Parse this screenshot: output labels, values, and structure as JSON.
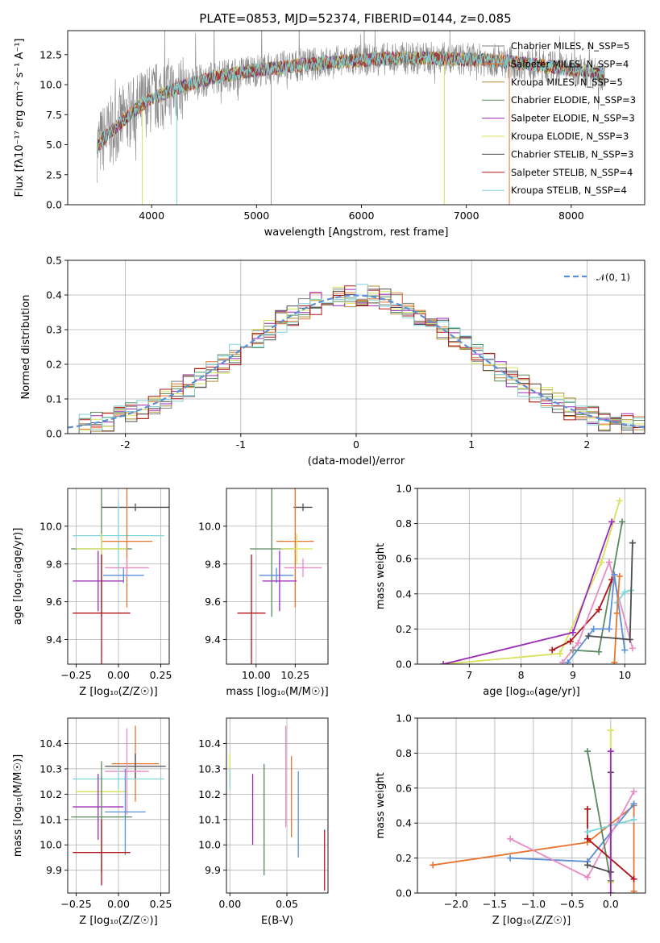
{
  "chart_data": [
    {
      "panel": "spectrum",
      "type": "line",
      "title": "PLATE=0853, MJD=52374, FIBERID=0144, z=0.085",
      "xlabel": "wavelength [Angstrom, rest frame]",
      "ylabel": "Flux [fλ10⁻¹⁷ erg cm⁻² s⁻¹ A⁻¹]",
      "xlim": [
        3200,
        8700
      ],
      "ylim": [
        0,
        14.5
      ],
      "xticks": [
        4000,
        5000,
        6000,
        7000,
        8000
      ],
      "yticks": [
        0.0,
        2.5,
        5.0,
        7.5,
        10.0,
        12.5
      ],
      "grid": false,
      "legend_position": "right",
      "continuum": {
        "x": [
          3450,
          3550,
          3650,
          3800,
          3950,
          4100,
          4300,
          4600,
          4900,
          5200,
          5500,
          5800,
          6100,
          6400,
          6700,
          7000,
          7300,
          7600,
          8000,
          8300
        ],
        "y": [
          4.5,
          5.6,
          6.4,
          7.6,
          8.6,
          9.2,
          9.9,
          10.6,
          11.1,
          11.4,
          11.7,
          11.9,
          12.1,
          12.2,
          12.2,
          12.1,
          12.0,
          11.7,
          11.3,
          10.9
        ]
      },
      "series": [
        {
          "name": "Chabrier MILES, N_SSP=5",
          "color": "#7f7f7f"
        },
        {
          "name": "Salpeter MILES, N_SSP=4",
          "color": "#e8742f"
        },
        {
          "name": "Kroupa MILES, N_SSP=5",
          "color": "#b08c32"
        },
        {
          "name": "Chabrier ELODIE, N_SSP=3",
          "color": "#5a8a5f"
        },
        {
          "name": "Salpeter ELODIE, N_SSP=3",
          "color": "#9a2ab8"
        },
        {
          "name": "Kroupa ELODIE, N_SSP=3",
          "color": "#d8e25a"
        },
        {
          "name": "Chabrier STELIB, N_SSP=3",
          "color": "#4d4d4d"
        },
        {
          "name": "Salpeter STELIB, N_SSP=4",
          "color": "#b01418"
        },
        {
          "name": "Kroupa STELIB, N_SSP=4",
          "color": "#7fd4d8"
        }
      ]
    },
    {
      "panel": "residuals",
      "type": "line",
      "xlabel": "(data-model)/error",
      "ylabel": "Normed distribution",
      "xlim": [
        -2.5,
        2.5
      ],
      "ylim": [
        0,
        0.5
      ],
      "xticks": [
        -2,
        -1,
        0,
        1,
        2
      ],
      "yticks": [
        0.0,
        0.1,
        0.2,
        0.3,
        0.4,
        0.5
      ],
      "grid": true,
      "legend": [
        {
          "name": "𝒩(0, 1)",
          "color": "#5b8fd6",
          "style": "dashed"
        }
      ],
      "legend_position": "top-right",
      "bins": {
        "start": -2.5,
        "width": 0.1,
        "count": 50
      },
      "histogram_colors": [
        "#7f7f7f",
        "#e8742f",
        "#b08c32",
        "#5a8a5f",
        "#9a2ab8",
        "#d8e25a",
        "#4d4d4d",
        "#b01418",
        "#7fd4d8"
      ]
    },
    {
      "panel": "age-Z",
      "type": "scatter",
      "xlabel": "Z [log₁₀(Z/Z☉)]",
      "ylabel": "age  [log₁₀(age/yr)]",
      "xlim": [
        -0.3,
        0.3
      ],
      "ylim": [
        9.27,
        10.2
      ],
      "xticks": [
        -0.25,
        0.0,
        0.25
      ],
      "xticklabels": [
        "−0.25",
        "0.00",
        "0.25"
      ],
      "yticks": [
        9.4,
        9.6,
        9.8,
        10.0
      ],
      "yticklabels": [
        "9.4",
        "9.6",
        "9.8",
        "10.0"
      ],
      "points": [
        {
          "color": "#4d4d4d",
          "x": 0.1,
          "xerr": 0.2,
          "y": 10.1,
          "yerr": 0.02
        },
        {
          "color": "#7fd4d8",
          "x": 0.0,
          "xerr": 0.27,
          "y": 9.95,
          "yerr": 0.18
        },
        {
          "color": "#e8742f",
          "x": 0.05,
          "xerr": 0.15,
          "y": 9.92,
          "yerr": 0.35
        },
        {
          "color": "#5a8a5f",
          "x": -0.1,
          "xerr": 0.18,
          "y": 9.88,
          "yerr": 0.36
        },
        {
          "color": "#d8e25a",
          "x": -0.1,
          "xerr": 0.15,
          "y": 9.88,
          "yerr": 0.08
        },
        {
          "color": "#e88ac4",
          "x": 0.05,
          "xerr": 0.13,
          "y": 9.78,
          "yerr": 0.05
        },
        {
          "color": "#5b8fd6",
          "x": 0.03,
          "xerr": 0.12,
          "y": 9.74,
          "yerr": 0.04
        },
        {
          "color": "#9a2ab8",
          "x": -0.12,
          "xerr": 0.15,
          "y": 9.71,
          "yerr": 0.16
        },
        {
          "color": "#b01418",
          "x": -0.1,
          "xerr": 0.17,
          "y": 9.54,
          "yerr": 0.31
        }
      ]
    },
    {
      "panel": "age-mass",
      "type": "scatter",
      "xlabel": "mass [log₁₀(M/M☉)]",
      "xlim": [
        9.81,
        10.46
      ],
      "ylim": [
        9.27,
        10.2
      ],
      "xticks": [
        10.0,
        10.25
      ],
      "xticklabels": [
        "10.00",
        "10.25"
      ],
      "yticks": [
        9.4,
        9.6,
        9.8,
        10.0
      ],
      "yticklabels": [
        "9.4",
        "9.6",
        "9.8",
        "10.0"
      ],
      "points": [
        {
          "color": "#4d4d4d",
          "x": 10.3,
          "xerr": 0.06,
          "y": 10.1,
          "yerr": 0.02
        },
        {
          "color": "#e8742f",
          "x": 10.25,
          "xerr": 0.12,
          "y": 9.92,
          "yerr": 0.35
        },
        {
          "color": "#5a8a5f",
          "x": 10.1,
          "xerr": 0.14,
          "y": 9.88,
          "yerr": 0.36
        },
        {
          "color": "#d8e25a",
          "x": 10.26,
          "xerr": 0.1,
          "y": 9.88,
          "yerr": 0.08
        },
        {
          "color": "#e88ac4",
          "x": 10.3,
          "xerr": 0.12,
          "y": 9.78,
          "yerr": 0.05
        },
        {
          "color": "#5b8fd6",
          "x": 10.13,
          "xerr": 0.11,
          "y": 9.74,
          "yerr": 0.04
        },
        {
          "color": "#9a2ab8",
          "x": 10.15,
          "xerr": 0.11,
          "y": 9.71,
          "yerr": 0.16
        },
        {
          "color": "#b01418",
          "x": 9.97,
          "xerr": 0.09,
          "y": 9.54,
          "yerr": 0.31
        }
      ]
    },
    {
      "panel": "massweight-age",
      "type": "line",
      "xlabel": "age  [log₁₀(age/yr)]",
      "ylabel": "mass weight",
      "xlim": [
        6.0,
        10.4
      ],
      "ylim": [
        0,
        1.0
      ],
      "xticks": [
        7,
        8,
        9,
        10
      ],
      "yticks": [
        0.0,
        0.2,
        0.4,
        0.6,
        0.8,
        1.0
      ],
      "series": [
        {
          "color": "#d8e25a",
          "x": [
            6.5,
            8.75,
            9.55,
            9.9
          ],
          "y": [
            0.0,
            0.06,
            0.58,
            0.93
          ]
        },
        {
          "color": "#5a8a5f",
          "x": [
            9.0,
            9.5,
            9.95
          ],
          "y": [
            0.08,
            0.07,
            0.81
          ]
        },
        {
          "color": "#9a2ab8",
          "x": [
            6.5,
            9.0,
            9.75
          ],
          "y": [
            0.0,
            0.18,
            0.81
          ]
        },
        {
          "color": "#b01418",
          "x": [
            8.6,
            8.95,
            9.5,
            9.75
          ],
          "y": [
            0.08,
            0.13,
            0.31,
            0.48
          ]
        },
        {
          "color": "#e88ac4",
          "x": [
            8.8,
            9.1,
            9.7,
            10.15
          ],
          "y": [
            0.01,
            0.12,
            0.58,
            0.09
          ]
        },
        {
          "color": "#5b8fd6",
          "x": [
            8.9,
            9.4,
            9.7,
            9.8,
            10.0
          ],
          "y": [
            0.01,
            0.2,
            0.2,
            0.51,
            0.08
          ]
        },
        {
          "color": "#7fd4d8",
          "x": [
            9.85,
            10.0,
            10.12
          ],
          "y": [
            0.35,
            0.41,
            0.42
          ]
        },
        {
          "color": "#e8742f",
          "x": [
            9.8,
            9.85,
            9.9
          ],
          "y": [
            0.01,
            0.29,
            0.5
          ]
        },
        {
          "color": "#4d4d4d",
          "x": [
            9.3,
            10.1,
            10.15
          ],
          "y": [
            0.16,
            0.14,
            0.69
          ]
        }
      ]
    },
    {
      "panel": "mass-Z",
      "type": "scatter",
      "xlabel": "Z [log₁₀(Z/Z☉)]",
      "ylabel": "mass [log₁₀(M/M☉)]",
      "xlim": [
        -0.3,
        0.3
      ],
      "ylim": [
        9.81,
        10.5
      ],
      "xticks": [
        -0.25,
        0.0,
        0.25
      ],
      "xticklabels": [
        "−0.25",
        "0.00",
        "0.25"
      ],
      "yticks": [
        9.9,
        10.0,
        10.1,
        10.2,
        10.3,
        10.4
      ],
      "yticklabels": [
        "9.9",
        "10.0",
        "10.1",
        "10.2",
        "10.3",
        "10.4"
      ],
      "points": [
        {
          "color": "#e8742f",
          "x": 0.1,
          "xerr": 0.14,
          "y": 10.32,
          "yerr": 0.15
        },
        {
          "color": "#4d4d4d",
          "x": 0.1,
          "xerr": 0.18,
          "y": 10.31,
          "yerr": 0.05
        },
        {
          "color": "#e88ac4",
          "x": 0.05,
          "xerr": 0.13,
          "y": 10.29,
          "yerr": 0.17
        },
        {
          "color": "#7fd4d8",
          "x": 0.0,
          "xerr": 0.27,
          "y": 10.26,
          "yerr": 0.04
        },
        {
          "color": "#d8e25a",
          "x": -0.1,
          "xerr": 0.15,
          "y": 10.21,
          "yerr": 0.05
        },
        {
          "color": "#9a2ab8",
          "x": -0.12,
          "xerr": 0.15,
          "y": 10.15,
          "yerr": 0.13
        },
        {
          "color": "#5b8fd6",
          "x": 0.04,
          "xerr": 0.12,
          "y": 10.13,
          "yerr": 0.17
        },
        {
          "color": "#5a8a5f",
          "x": -0.1,
          "xerr": 0.18,
          "y": 10.11,
          "yerr": 0.22
        },
        {
          "color": "#b01418",
          "x": -0.1,
          "xerr": 0.17,
          "y": 9.97,
          "yerr": 0.13
        }
      ]
    },
    {
      "panel": "mass-EBV",
      "type": "scatter",
      "xlabel": "E(B-V)",
      "xlim": [
        -0.003,
        0.086
      ],
      "ylim": [
        9.81,
        10.5
      ],
      "xticks": [
        0.0,
        0.05
      ],
      "xticklabels": [
        "0.00",
        "0.05"
      ],
      "yticks": [
        9.9,
        10.0,
        10.1,
        10.2,
        10.3,
        10.4
      ],
      "yticklabels": [
        "9.9",
        "10.0",
        "10.1",
        "10.2",
        "10.3",
        "10.4"
      ],
      "points": [
        {
          "color": "#d8e25a",
          "x": 0.0,
          "xerr": 0.0,
          "y": 10.3,
          "yerr": 0.06
        },
        {
          "color": "#7fd4d8",
          "x": 0.0,
          "xerr": 0.0,
          "y": 10.26,
          "yerr": 0.04
        },
        {
          "color": "#9a2ab8",
          "x": 0.02,
          "xerr": 0.0,
          "y": 10.14,
          "yerr": 0.14
        },
        {
          "color": "#5a8a5f",
          "x": 0.03,
          "xerr": 0.0,
          "y": 10.1,
          "yerr": 0.22
        },
        {
          "color": "#e88ac4",
          "x": 0.049,
          "xerr": 0.0,
          "y": 10.27,
          "yerr": 0.2
        },
        {
          "color": "#e8742f",
          "x": 0.054,
          "xerr": 0.0,
          "y": 10.19,
          "yerr": 0.16
        },
        {
          "color": "#5b8fd6",
          "x": 0.06,
          "xerr": 0.0,
          "y": 10.12,
          "yerr": 0.17
        },
        {
          "color": "#b01418",
          "x": 0.083,
          "xerr": 0.0,
          "y": 9.94,
          "yerr": 0.12
        }
      ]
    },
    {
      "panel": "massweight-Z",
      "type": "line",
      "xlabel": "Z [log₁₀(Z/Z☉)]",
      "ylabel": "mass weight",
      "xlim": [
        -2.5,
        0.45
      ],
      "ylim": [
        0,
        1.0
      ],
      "xticks": [
        -2.0,
        -1.5,
        -1.0,
        -0.5,
        0.0
      ],
      "xticklabels": [
        "−2.0",
        "−1.5",
        "−1.0",
        "−0.5",
        "0.0"
      ],
      "yticks": [
        0.0,
        0.2,
        0.4,
        0.6,
        0.8,
        1.0
      ],
      "series": [
        {
          "color": "#e8742f",
          "x": [
            -2.3,
            -0.3,
            0.3,
            0.3
          ],
          "y": [
            0.16,
            0.29,
            0.5,
            0.01
          ]
        },
        {
          "color": "#5b8fd6",
          "x": [
            -1.3,
            -0.3,
            0.3
          ],
          "y": [
            0.2,
            0.18,
            0.51
          ]
        },
        {
          "color": "#e88ac4",
          "x": [
            -1.3,
            -0.3,
            0.3
          ],
          "y": [
            0.31,
            0.09,
            0.58
          ]
        },
        {
          "color": "#5a8a5f",
          "x": [
            -0.3,
            0.0
          ],
          "y": [
            0.81,
            0.07
          ]
        },
        {
          "color": "#d8e25a",
          "x": [
            0.0,
            0.0
          ],
          "y": [
            0.06,
            0.93
          ]
        },
        {
          "color": "#b01418",
          "x": [
            -0.3,
            -0.3,
            0.3
          ],
          "y": [
            0.48,
            0.31,
            0.08
          ]
        },
        {
          "color": "#7fd4d8",
          "x": [
            -0.3,
            0.3
          ],
          "y": [
            0.35,
            0.42
          ]
        },
        {
          "color": "#4d4d4d",
          "x": [
            -0.3,
            0.0,
            0.0
          ],
          "y": [
            0.16,
            0.12,
            0.69
          ]
        },
        {
          "color": "#9a2ab8",
          "x": [
            0.0,
            0.0
          ],
          "y": [
            0.0,
            0.81
          ]
        }
      ]
    }
  ]
}
